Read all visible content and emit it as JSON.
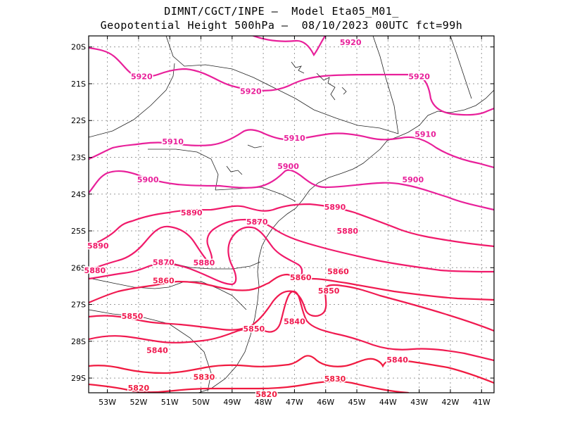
{
  "title": {
    "line1": "DIMNT/CGCT/INPE –  Model Eta05_M01_",
    "line2": "Geopotential Height 500hPa –  08/10/2023 00UTC fct=99h"
  },
  "axes": {
    "lat_labels": [
      "20S",
      "21S",
      "22S",
      "23S",
      "24S",
      "25S",
      "26S",
      "27S",
      "28S",
      "29S"
    ],
    "lon_labels": [
      "53W",
      "52W",
      "51W",
      "50W",
      "49W",
      "48W",
      "47W",
      "46W",
      "45W",
      "44W",
      "43W",
      "42W",
      "41W"
    ]
  },
  "chart_data": {
    "type": "contour-map",
    "variable": "Geopotential Height 500hPa",
    "lat_range": [
      -29.4,
      -19.7
    ],
    "lon_range": [
      -53.6,
      -40.6
    ],
    "grid": true,
    "colors": {
      "5920": "#e8209a",
      "5910": "#e8209a",
      "5900": "#e8209a",
      "5890": "#f01a6a",
      "5880": "#f01a6a",
      "5870": "#f01a6a",
      "5860": "#f01a50",
      "5850": "#f01a50",
      "5840": "#f01a50",
      "5830": "#f01a40",
      "5820": "#f01a40"
    },
    "contour_labels": [
      {
        "text": "5920",
        "lon": -45.2,
        "lat": -19.87
      },
      {
        "text": "5920",
        "lon": -51.9,
        "lat": -20.8
      },
      {
        "text": "5920",
        "lon": -48.4,
        "lat": -21.2
      },
      {
        "text": "5920",
        "lon": -43.0,
        "lat": -20.8
      },
      {
        "text": "5910",
        "lon": -50.9,
        "lat": -22.57
      },
      {
        "text": "5910",
        "lon": -47.0,
        "lat": -22.47
      },
      {
        "text": "5910",
        "lon": -42.8,
        "lat": -22.37
      },
      {
        "text": "5900",
        "lon": -47.2,
        "lat": -23.24
      },
      {
        "text": "5900",
        "lon": -51.7,
        "lat": -23.6
      },
      {
        "text": "5900",
        "lon": -43.2,
        "lat": -23.6
      },
      {
        "text": "5890",
        "lon": -50.3,
        "lat": -24.5
      },
      {
        "text": "5890",
        "lon": -53.3,
        "lat": -25.4
      },
      {
        "text": "5890",
        "lon": -45.7,
        "lat": -24.35
      },
      {
        "text": "5880",
        "lon": -53.4,
        "lat": -26.07
      },
      {
        "text": "5880",
        "lon": -49.9,
        "lat": -25.86
      },
      {
        "text": "5880",
        "lon": -45.3,
        "lat": -25.0
      },
      {
        "text": "5870",
        "lon": -48.2,
        "lat": -24.75
      },
      {
        "text": "5870",
        "lon": -51.2,
        "lat": -25.85
      },
      {
        "text": "5860",
        "lon": -51.2,
        "lat": -26.35
      },
      {
        "text": "5860",
        "lon": -46.8,
        "lat": -26.26
      },
      {
        "text": "5860",
        "lon": -45.6,
        "lat": -26.1
      },
      {
        "text": "5850",
        "lon": -52.2,
        "lat": -27.31
      },
      {
        "text": "5850",
        "lon": -48.3,
        "lat": -27.66
      },
      {
        "text": "5850",
        "lon": -45.9,
        "lat": -26.63
      },
      {
        "text": "5840",
        "lon": -51.4,
        "lat": -28.24
      },
      {
        "text": "5840",
        "lon": -47.0,
        "lat": -27.46
      },
      {
        "text": "5840",
        "lon": -43.7,
        "lat": -28.5
      },
      {
        "text": "5830",
        "lon": -49.9,
        "lat": -28.97
      },
      {
        "text": "5830",
        "lon": -45.7,
        "lat": -29.02
      },
      {
        "text": "5820",
        "lon": -52.0,
        "lat": -29.27
      },
      {
        "text": "5820",
        "lon": -47.9,
        "lat": -29.44
      }
    ]
  }
}
